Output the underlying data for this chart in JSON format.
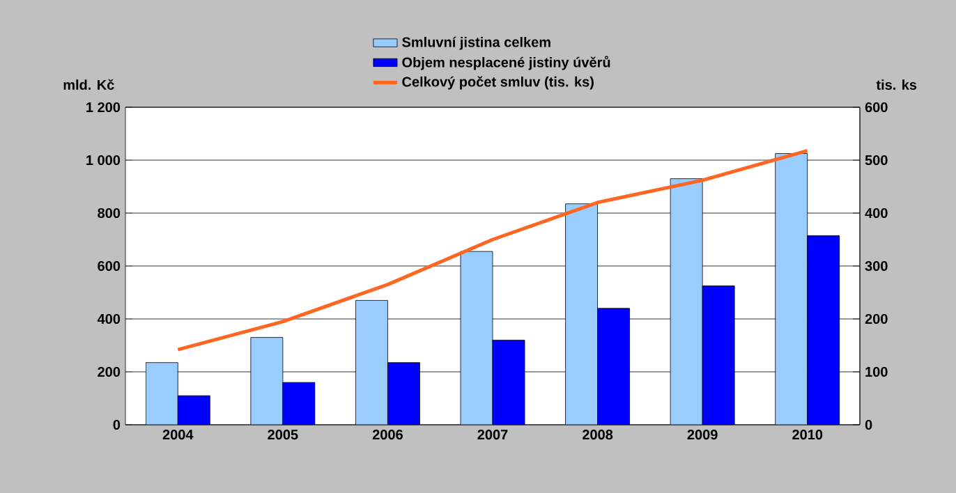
{
  "chart_data": {
    "type": "bar",
    "categories": [
      "2004",
      "2005",
      "2006",
      "2007",
      "2008",
      "2009",
      "2010"
    ],
    "series": [
      {
        "name": "Smluvní jistina celkem",
        "color": "#99ccff",
        "values": [
          235,
          330,
          470,
          655,
          835,
          930,
          1025
        ]
      },
      {
        "name": "Objem nesplacené jistiny úvěrů",
        "color": "#0000ff",
        "values": [
          110,
          160,
          235,
          320,
          440,
          525,
          715
        ]
      },
      {
        "name": "Celkový počet smluv (tis. ks)",
        "color": "#ff6622",
        "type": "line",
        "axis": "y2",
        "values": [
          142,
          195,
          265,
          350,
          420,
          462,
          518
        ]
      }
    ],
    "ylabel": "mld. Kč",
    "y2label": "tis. ks",
    "ylim": [
      0,
      1200
    ],
    "yticks": [
      0,
      200,
      400,
      600,
      800,
      {
        "value": 1000,
        "label": "1 000"
      },
      {
        "value": 1200,
        "label": "1 200"
      }
    ],
    "y2lim": [
      0,
      600
    ],
    "y2ticks": [
      0,
      100,
      200,
      300,
      400,
      500,
      600
    ],
    "grid": "y",
    "legend": "top"
  }
}
